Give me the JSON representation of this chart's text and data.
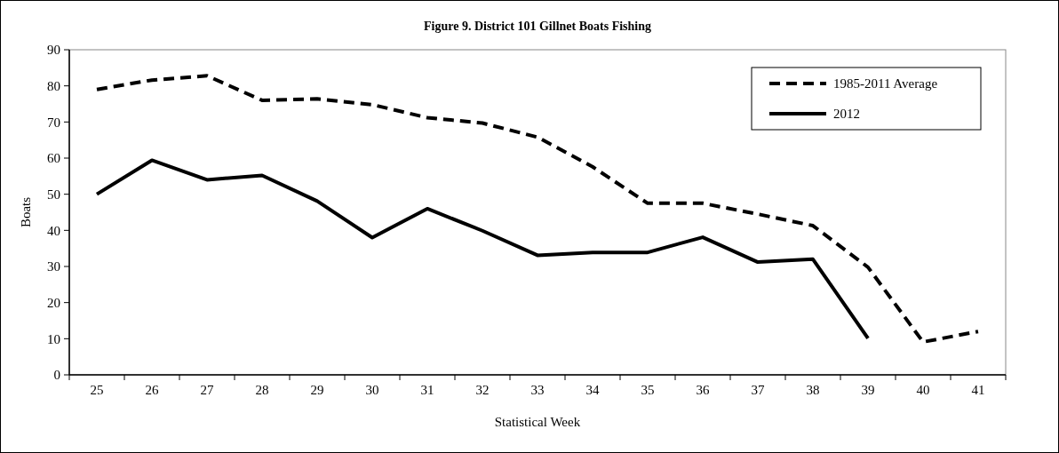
{
  "chart_data": {
    "type": "line",
    "title": "Figure 9. District  101 Gillnet Boats Fishing",
    "xlabel": "Statistical Week",
    "ylabel": "Boats",
    "categories": [
      "25",
      "26",
      "27",
      "28",
      "29",
      "30",
      "31",
      "32",
      "33",
      "34",
      "35",
      "36",
      "37",
      "38",
      "39",
      "40",
      "41"
    ],
    "series": [
      {
        "name": "1985-2011 Average",
        "color": "#000000",
        "line_style": "dashed",
        "values": [
          79,
          81.6,
          82.8,
          76,
          76.4,
          74.8,
          71.2,
          69.7,
          65.8,
          57.6,
          47.5,
          47.5,
          44.5,
          41.3,
          29.8,
          9.1,
          12
        ]
      },
      {
        "name": "2012",
        "color": "#000000",
        "line_style": "solid",
        "values": [
          50,
          59.4,
          54,
          55.2,
          48.1,
          38,
          46,
          39.9,
          33.1,
          33.9,
          33.9,
          38.1,
          31.2,
          32,
          10.1,
          null,
          null
        ]
      }
    ],
    "ylim": [
      0,
      90
    ],
    "yticks": [
      0,
      10,
      20,
      30,
      40,
      50,
      60,
      70,
      80,
      90
    ],
    "grid": false,
    "legend": "top right"
  }
}
